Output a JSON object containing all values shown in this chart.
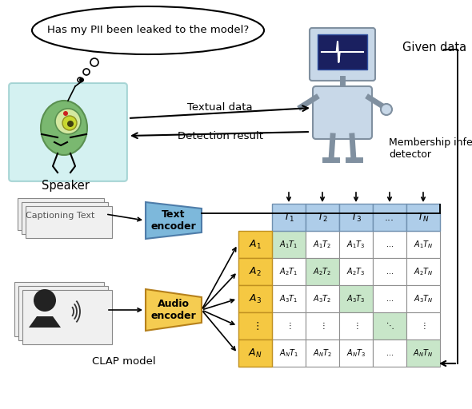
{
  "background_color": "#ffffff",
  "speech_bubble_text": "Has my PII been leaked to the model?",
  "speaker_label": "Speaker",
  "given_data_label": "Given data",
  "membership_inference_label": "Membership inference\ndetector",
  "textual_data_arrow": "Textual data",
  "detection_result_arrow": "Detection result",
  "captioning_text_label": "Captioning Text",
  "text_encoder_label": "Text\nencoder",
  "audio_encoder_label": "Audio\nencoder",
  "clap_model_label": "CLAP model",
  "col_headers": [
    "$T_1$",
    "$T_2$",
    "$T_3$",
    "...",
    "$T_N$"
  ],
  "row_headers": [
    "$A_1$",
    "$A_2$",
    "$A_3$",
    "$\\vdots$",
    "$A_N$"
  ],
  "matrix_cells": [
    [
      "$A_1T_1$",
      "$A_1T_2$",
      "$A_1T_3$",
      "...",
      "$A_1T_N$"
    ],
    [
      "$A_2T_1$",
      "$A_2T_2$",
      "$A_2T_3$",
      "...",
      "$A_2T_N$"
    ],
    [
      "$A_3T_1$",
      "$A_3T_2$",
      "$A_3T_3$",
      "...",
      "$A_3T_N$"
    ],
    [
      "$\\vdots$",
      "$\\vdots$",
      "$\\vdots$",
      "$\\ddots$",
      "$\\vdots$"
    ],
    [
      "$A_NT_1$",
      "$A_NT_2$",
      "$A_NT_3$",
      "...",
      "$A_NT_N$"
    ]
  ],
  "diagonal_highlight_color": "#c8e6c9",
  "col_header_color": "#aecde9",
  "row_header_color": "#f5c842",
  "matrix_bg_color": "#ffffff",
  "text_encoder_color": "#6baed6",
  "audio_encoder_color": "#f5c842",
  "teal_bg": "#b8e8e8",
  "robot_body_color": "#c8d8e8",
  "robot_outline_color": "#8090a0"
}
